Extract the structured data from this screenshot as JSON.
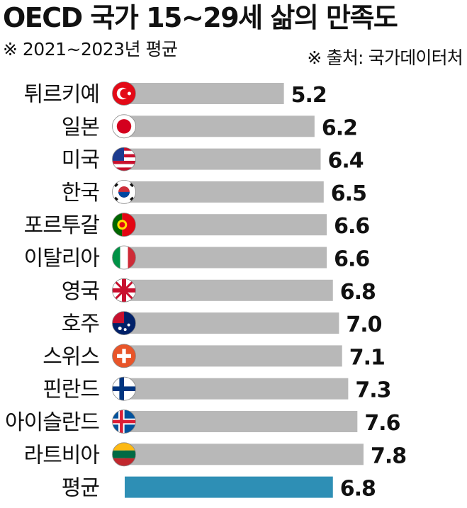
{
  "title": "OECD 국가 15~29세 삶의 만족도",
  "subtitle": "※ 2021~2023년 평균",
  "source": "※ 출처: 국가데이터처",
  "colors": {
    "bar": "#b8b8b8",
    "average_bar": "#2e8fb5"
  },
  "chart_data": {
    "type": "bar",
    "orientation": "horizontal",
    "categories": [
      "튀르키예",
      "일본",
      "미국",
      "한국",
      "포르투갈",
      "이탈리아",
      "영국",
      "호주",
      "스위스",
      "핀란드",
      "아이슬란드",
      "라트비아",
      "평균"
    ],
    "values": [
      5.2,
      6.2,
      6.4,
      6.5,
      6.6,
      6.6,
      6.8,
      7.0,
      7.1,
      7.3,
      7.6,
      7.8,
      6.8
    ],
    "value_labels": [
      "5.2",
      "6.2",
      "6.4",
      "6.5",
      "6.6",
      "6.6",
      "6.8",
      "7.0",
      "7.1",
      "7.3",
      "7.6",
      "7.8",
      "6.8"
    ],
    "flags": [
      "turkey-flag",
      "japan-flag",
      "usa-flag",
      "korea-flag",
      "portugal-flag",
      "italy-flag",
      "uk-flag",
      "australia-flag",
      "switzerland-flag",
      "finland-flag",
      "iceland-flag",
      "latvia-flag",
      ""
    ],
    "highlight_index": 12,
    "grid": false,
    "legend": "none"
  }
}
